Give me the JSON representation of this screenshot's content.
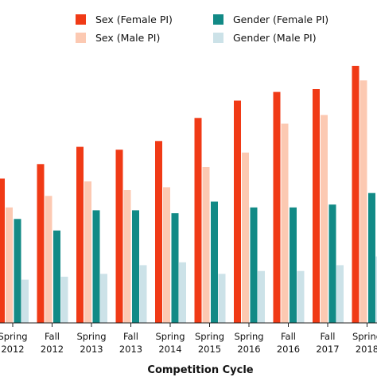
{
  "chart_data": {
    "type": "bar",
    "title": "",
    "xlabel": "Competition Cycle",
    "ylabel": "",
    "categories": [
      [
        "Spring",
        "2012"
      ],
      [
        "Fall",
        "2012"
      ],
      [
        "Spring",
        "2013"
      ],
      [
        "Fall",
        "2013"
      ],
      [
        "Spring",
        "2014"
      ],
      [
        "Spring",
        "2015"
      ],
      [
        "Spring",
        "2016"
      ],
      [
        "Fall",
        "2016"
      ],
      [
        "Fall",
        "2017"
      ],
      [
        "Spring",
        "2018"
      ]
    ],
    "ylim": [
      0,
      100
    ],
    "grid": false,
    "legend_placement": "top",
    "series": [
      {
        "name": "Sex (Female PI)",
        "color": "#f03a16",
        "values": [
          50,
          55,
          61,
          60,
          63,
          71,
          77,
          80,
          81,
          89
        ]
      },
      {
        "name": "Sex (Male PI)",
        "color": "#fcc9b2",
        "values": [
          40,
          44,
          49,
          46,
          47,
          54,
          59,
          69,
          72,
          84
        ]
      },
      {
        "name": "Gender (Female PI)",
        "color": "#128a86",
        "values": [
          36,
          32,
          39,
          39,
          38,
          42,
          40,
          40,
          41,
          45
        ]
      },
      {
        "name": "Gender (Male PI)",
        "color": "#cce2e8",
        "values": [
          15,
          16,
          17,
          20,
          21,
          17,
          18,
          18,
          20,
          23
        ]
      }
    ]
  }
}
